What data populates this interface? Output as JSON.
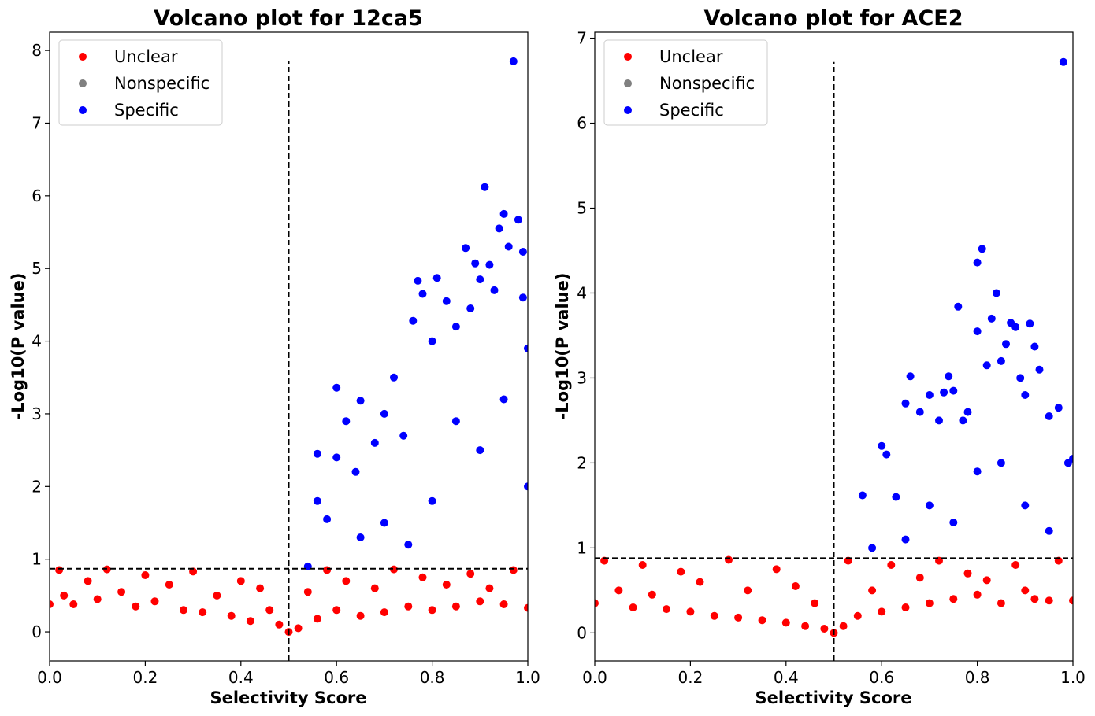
{
  "figure": {
    "background": "#ffffff",
    "colors": {
      "unclear": "#ff0000",
      "nonspecific": "#808080",
      "specific": "#0000ff",
      "threshold": "#000000"
    }
  },
  "chart_data": [
    {
      "type": "scatter",
      "title": "Volcano plot for 12ca5",
      "xlabel": "Selectivity Score",
      "ylabel": "-Log10(P value)",
      "xlim": [
        0.0,
        1.0
      ],
      "ylim": [
        -0.4,
        8.25
      ],
      "xticks": [
        "0.0",
        "0.2",
        "0.4",
        "0.6",
        "0.8",
        "1.0"
      ],
      "yticks": [
        "0",
        "1",
        "2",
        "3",
        "4",
        "5",
        "6",
        "7",
        "8"
      ],
      "grid": false,
      "legend": {
        "placement": "top-left",
        "entries": [
          "Unclear",
          "Nonspecific",
          "Specific"
        ]
      },
      "threshold": {
        "x": 0.5,
        "y": 0.87,
        "vline_top": 7.85
      },
      "series": [
        {
          "name": "Unclear",
          "color": "#ff0000",
          "points": [
            [
              0.0,
              0.38
            ],
            [
              0.02,
              0.85
            ],
            [
              0.03,
              0.5
            ],
            [
              0.05,
              0.38
            ],
            [
              0.08,
              0.7
            ],
            [
              0.1,
              0.45
            ],
            [
              0.12,
              0.86
            ],
            [
              0.15,
              0.55
            ],
            [
              0.18,
              0.35
            ],
            [
              0.2,
              0.78
            ],
            [
              0.22,
              0.42
            ],
            [
              0.25,
              0.65
            ],
            [
              0.28,
              0.3
            ],
            [
              0.3,
              0.83
            ],
            [
              0.32,
              0.27
            ],
            [
              0.35,
              0.5
            ],
            [
              0.38,
              0.22
            ],
            [
              0.4,
              0.7
            ],
            [
              0.42,
              0.15
            ],
            [
              0.44,
              0.6
            ],
            [
              0.46,
              0.3
            ],
            [
              0.48,
              0.1
            ],
            [
              0.5,
              0.0
            ],
            [
              0.52,
              0.05
            ],
            [
              0.54,
              0.55
            ],
            [
              0.56,
              0.18
            ],
            [
              0.58,
              0.85
            ],
            [
              0.6,
              0.3
            ],
            [
              0.62,
              0.7
            ],
            [
              0.65,
              0.22
            ],
            [
              0.68,
              0.6
            ],
            [
              0.7,
              0.27
            ],
            [
              0.72,
              0.86
            ],
            [
              0.75,
              0.35
            ],
            [
              0.78,
              0.75
            ],
            [
              0.8,
              0.3
            ],
            [
              0.83,
              0.65
            ],
            [
              0.85,
              0.35
            ],
            [
              0.88,
              0.8
            ],
            [
              0.9,
              0.42
            ],
            [
              0.92,
              0.6
            ],
            [
              0.95,
              0.38
            ],
            [
              0.97,
              0.85
            ],
            [
              1.0,
              0.33
            ]
          ]
        },
        {
          "name": "Nonspecific",
          "color": "#808080",
          "points": []
        },
        {
          "name": "Specific",
          "color": "#0000ff",
          "points": [
            [
              0.54,
              0.9
            ],
            [
              0.56,
              1.8
            ],
            [
              0.56,
              2.45
            ],
            [
              0.58,
              1.55
            ],
            [
              0.6,
              3.36
            ],
            [
              0.6,
              2.4
            ],
            [
              0.62,
              2.9
            ],
            [
              0.64,
              2.2
            ],
            [
              0.65,
              3.18
            ],
            [
              0.68,
              2.6
            ],
            [
              0.7,
              3.0
            ],
            [
              0.72,
              3.5
            ],
            [
              0.74,
              2.7
            ],
            [
              0.76,
              4.28
            ],
            [
              0.77,
              4.83
            ],
            [
              0.78,
              4.65
            ],
            [
              0.8,
              4.0
            ],
            [
              0.81,
              4.87
            ],
            [
              0.83,
              4.55
            ],
            [
              0.85,
              4.2
            ],
            [
              0.87,
              5.28
            ],
            [
              0.88,
              4.45
            ],
            [
              0.89,
              5.07
            ],
            [
              0.9,
              4.85
            ],
            [
              0.91,
              6.12
            ],
            [
              0.92,
              5.05
            ],
            [
              0.93,
              4.7
            ],
            [
              0.94,
              5.55
            ],
            [
              0.95,
              5.75
            ],
            [
              0.96,
              5.3
            ],
            [
              0.97,
              7.85
            ],
            [
              0.98,
              5.67
            ],
            [
              0.99,
              5.23
            ],
            [
              0.99,
              4.6
            ],
            [
              1.0,
              3.9
            ],
            [
              0.7,
              1.5
            ],
            [
              0.8,
              1.8
            ],
            [
              0.9,
              2.5
            ],
            [
              0.95,
              3.2
            ],
            [
              0.85,
              2.9
            ],
            [
              0.65,
              1.3
            ],
            [
              0.75,
              1.2
            ],
            [
              1.0,
              2.0
            ]
          ]
        }
      ]
    },
    {
      "type": "scatter",
      "title": "Volcano plot for ACE2",
      "xlabel": "Selectivity Score",
      "ylabel": "-Log10(P value)",
      "xlim": [
        0.0,
        1.0
      ],
      "ylim": [
        -0.33,
        7.07
      ],
      "xticks": [
        "0.0",
        "0.2",
        "0.4",
        "0.6",
        "0.8",
        "1.0"
      ],
      "yticks": [
        "0",
        "1",
        "2",
        "3",
        "4",
        "5",
        "6",
        "7"
      ],
      "grid": false,
      "legend": {
        "placement": "top-left",
        "entries": [
          "Unclear",
          "Nonspecific",
          "Specific"
        ]
      },
      "threshold": {
        "x": 0.5,
        "y": 0.88,
        "vline_top": 6.72
      },
      "series": [
        {
          "name": "Unclear",
          "color": "#ff0000",
          "points": [
            [
              0.0,
              0.35
            ],
            [
              0.02,
              0.85
            ],
            [
              0.05,
              0.5
            ],
            [
              0.08,
              0.3
            ],
            [
              0.1,
              0.8
            ],
            [
              0.12,
              0.45
            ],
            [
              0.15,
              0.28
            ],
            [
              0.18,
              0.72
            ],
            [
              0.2,
              0.25
            ],
            [
              0.22,
              0.6
            ],
            [
              0.25,
              0.2
            ],
            [
              0.28,
              0.86
            ],
            [
              0.3,
              0.18
            ],
            [
              0.32,
              0.5
            ],
            [
              0.35,
              0.15
            ],
            [
              0.38,
              0.75
            ],
            [
              0.4,
              0.12
            ],
            [
              0.42,
              0.55
            ],
            [
              0.44,
              0.08
            ],
            [
              0.46,
              0.35
            ],
            [
              0.48,
              0.05
            ],
            [
              0.5,
              0.0
            ],
            [
              0.52,
              0.08
            ],
            [
              0.53,
              0.85
            ],
            [
              0.55,
              0.2
            ],
            [
              0.58,
              0.5
            ],
            [
              0.6,
              0.25
            ],
            [
              0.62,
              0.8
            ],
            [
              0.65,
              0.3
            ],
            [
              0.68,
              0.65
            ],
            [
              0.7,
              0.35
            ],
            [
              0.72,
              0.85
            ],
            [
              0.75,
              0.4
            ],
            [
              0.78,
              0.7
            ],
            [
              0.8,
              0.45
            ],
            [
              0.82,
              0.62
            ],
            [
              0.85,
              0.35
            ],
            [
              0.88,
              0.8
            ],
            [
              0.9,
              0.5
            ],
            [
              0.92,
              0.4
            ],
            [
              0.95,
              0.38
            ],
            [
              0.97,
              0.85
            ],
            [
              1.0,
              0.38
            ]
          ]
        },
        {
          "name": "Nonspecific",
          "color": "#808080",
          "points": []
        },
        {
          "name": "Specific",
          "color": "#0000ff",
          "points": [
            [
              0.56,
              1.62
            ],
            [
              0.58,
              1.0
            ],
            [
              0.6,
              2.2
            ],
            [
              0.61,
              2.1
            ],
            [
              0.63,
              1.6
            ],
            [
              0.65,
              2.7
            ],
            [
              0.66,
              3.02
            ],
            [
              0.68,
              2.6
            ],
            [
              0.7,
              2.8
            ],
            [
              0.72,
              2.5
            ],
            [
              0.73,
              2.83
            ],
            [
              0.74,
              3.02
            ],
            [
              0.75,
              2.85
            ],
            [
              0.76,
              3.84
            ],
            [
              0.77,
              2.5
            ],
            [
              0.78,
              2.6
            ],
            [
              0.8,
              3.55
            ],
            [
              0.8,
              4.36
            ],
            [
              0.81,
              4.52
            ],
            [
              0.82,
              3.15
            ],
            [
              0.83,
              3.7
            ],
            [
              0.84,
              4.0
            ],
            [
              0.85,
              3.2
            ],
            [
              0.86,
              3.4
            ],
            [
              0.87,
              3.65
            ],
            [
              0.88,
              3.6
            ],
            [
              0.89,
              3.0
            ],
            [
              0.9,
              2.8
            ],
            [
              0.91,
              3.64
            ],
            [
              0.92,
              3.37
            ],
            [
              0.93,
              3.1
            ],
            [
              0.95,
              2.55
            ],
            [
              0.97,
              2.65
            ],
            [
              0.98,
              6.72
            ],
            [
              0.99,
              2.0
            ],
            [
              1.0,
              2.05
            ],
            [
              0.7,
              1.5
            ],
            [
              0.75,
              1.3
            ],
            [
              0.8,
              1.9
            ],
            [
              0.85,
              2.0
            ],
            [
              0.9,
              1.5
            ],
            [
              0.95,
              1.2
            ],
            [
              0.65,
              1.1
            ]
          ]
        }
      ]
    }
  ]
}
